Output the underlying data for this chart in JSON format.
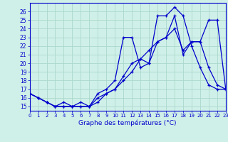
{
  "xlabel": "Graphe des températures (°C)",
  "background_color": "#cff0e8",
  "grid_color": "#aad8cc",
  "line_color": "#0000cc",
  "line1_x": [
    0,
    1,
    2,
    3,
    4,
    5,
    6,
    7,
    8,
    9,
    10,
    11,
    12,
    13,
    14,
    15,
    16,
    17,
    18,
    19,
    20,
    21,
    22,
    23
  ],
  "line1_y": [
    16.5,
    16.0,
    15.5,
    15.0,
    15.0,
    15.0,
    15.0,
    15.0,
    15.5,
    16.5,
    17.0,
    18.5,
    20.0,
    20.5,
    20.0,
    25.5,
    25.5,
    26.5,
    25.5,
    22.0,
    19.5,
    17.5,
    17.0,
    17.0
  ],
  "line2_x": [
    0,
    1,
    2,
    3,
    4,
    5,
    6,
    7,
    8,
    9,
    10,
    11,
    12,
    13,
    14,
    15,
    16,
    17,
    18,
    19,
    20,
    21,
    22,
    23
  ],
  "line2_y": [
    16.5,
    16.0,
    15.5,
    15.0,
    15.5,
    15.0,
    15.5,
    15.0,
    16.5,
    17.0,
    18.0,
    23.0,
    23.0,
    19.5,
    20.0,
    22.5,
    23.0,
    25.5,
    21.0,
    22.5,
    22.5,
    25.0,
    25.0,
    17.0
  ],
  "line3_x": [
    0,
    1,
    2,
    3,
    4,
    5,
    6,
    7,
    8,
    9,
    10,
    11,
    12,
    13,
    14,
    15,
    16,
    17,
    18,
    19,
    20,
    21,
    22,
    23
  ],
  "line3_y": [
    16.5,
    16.0,
    15.5,
    15.0,
    15.0,
    15.0,
    15.0,
    15.0,
    16.0,
    16.5,
    17.0,
    18.0,
    19.0,
    20.5,
    21.5,
    22.5,
    23.0,
    24.0,
    21.5,
    22.5,
    22.5,
    19.5,
    17.5,
    17.0
  ],
  "xlim": [
    0,
    23
  ],
  "ylim": [
    14.5,
    27.0
  ],
  "yticks": [
    15,
    16,
    17,
    18,
    19,
    20,
    21,
    22,
    23,
    24,
    25,
    26
  ],
  "xticks": [
    0,
    1,
    2,
    3,
    4,
    5,
    6,
    7,
    8,
    9,
    10,
    11,
    12,
    13,
    14,
    15,
    16,
    17,
    18,
    19,
    20,
    21,
    22,
    23
  ]
}
